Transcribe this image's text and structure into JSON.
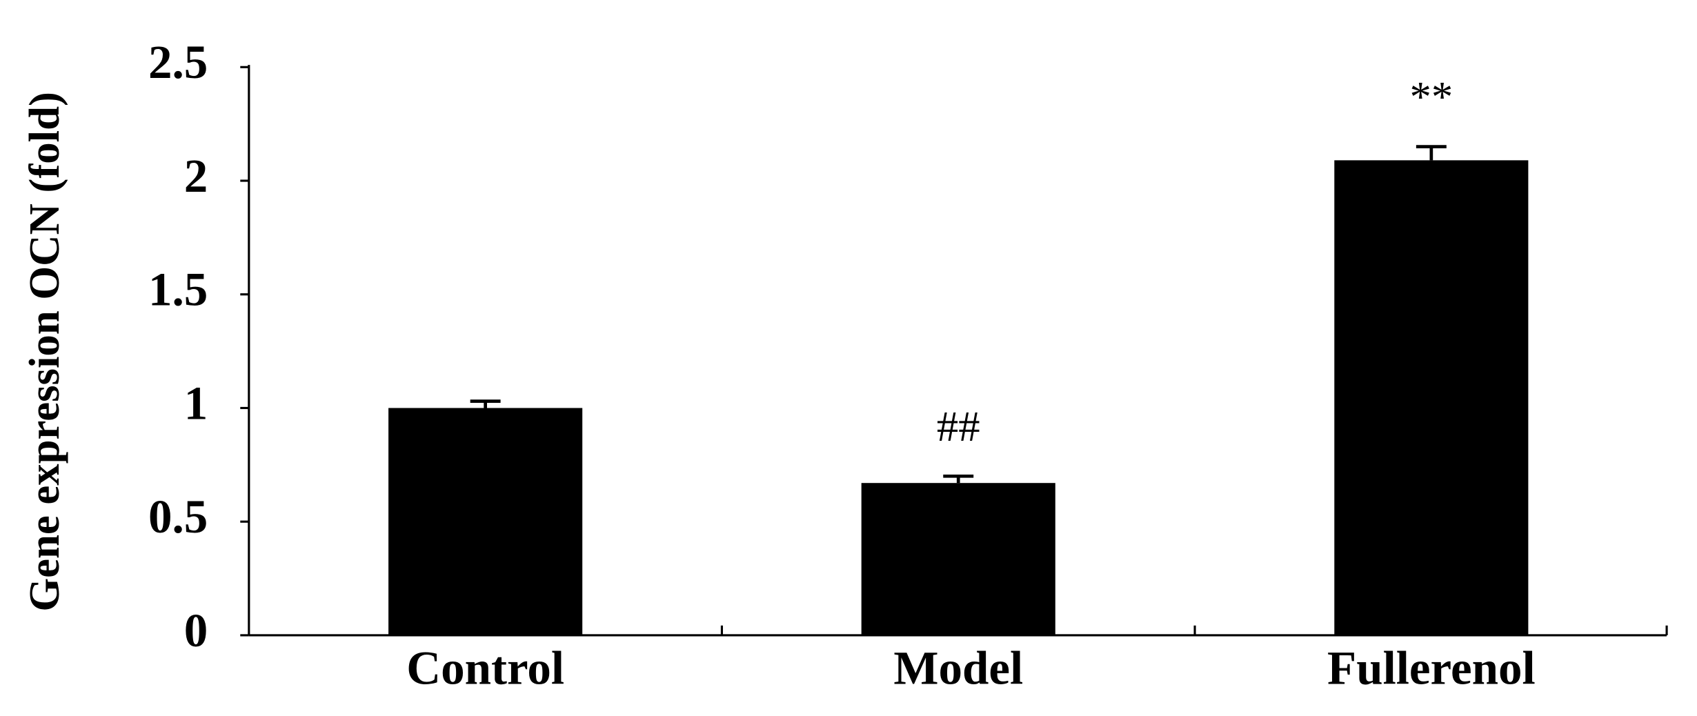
{
  "chart_data": {
    "type": "bar",
    "y_label": "Gene expression OCN (fold)",
    "categories": [
      "Control",
      "Model",
      "Fullerenol"
    ],
    "values": [
      1.0,
      0.67,
      2.09
    ],
    "errors": [
      0.03,
      0.03,
      0.06
    ],
    "annotations": [
      {
        "category": "Model",
        "text": "##"
      },
      {
        "category": "Fullerenol",
        "text": "**"
      }
    ],
    "color": "#000000",
    "ylim": [
      0,
      2.5
    ],
    "yticks": [
      0,
      0.5,
      1,
      1.5,
      2,
      2.5
    ],
    "grid": false
  }
}
